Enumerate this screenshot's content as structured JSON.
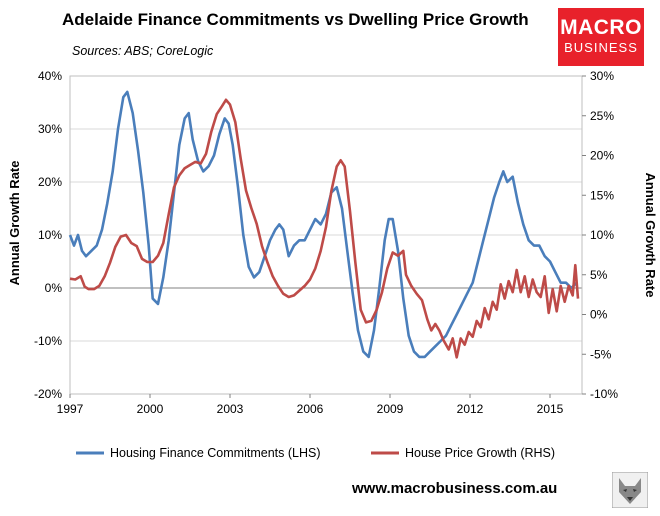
{
  "header": {
    "title": "Adelaide Finance Commitments vs Dwelling Price Growth",
    "source": "Sources: ABS; CoreLogic"
  },
  "logo": {
    "line1": "MACRO",
    "line2": "BUSINESS"
  },
  "footer": {
    "website": "www.macrobusiness.com.au"
  },
  "colors": {
    "finance": "#4a7ebb",
    "price": "#be4b48",
    "grid": "#d9d9d9",
    "logo_bg": "#e8212b"
  },
  "chart_data": {
    "type": "line",
    "title": "Adelaide Finance Commitments vs Dwelling Price Growth",
    "xlabel": "",
    "ylabel_left": "Annual Growth Rate",
    "ylabel_right": "Annual Growth Rate",
    "xlim": [
      1997,
      2016.2
    ],
    "ylim_left": [
      -20,
      40
    ],
    "ylim_right": [
      -10,
      30
    ],
    "x_ticks": [
      1997,
      2000,
      2003,
      2006,
      2009,
      2012,
      2015
    ],
    "y_ticks_left": [
      "-20%",
      "-10%",
      "0%",
      "10%",
      "20%",
      "30%",
      "40%"
    ],
    "y_ticks_right": [
      "-10%",
      "-5%",
      "0%",
      "5%",
      "10%",
      "15%",
      "20%",
      "25%",
      "30%"
    ],
    "grid": "horizontal",
    "legend_position": "bottom",
    "series": [
      {
        "name": "Housing Finance Commitments (LHS)",
        "axis": "left",
        "points": [
          [
            1997.0,
            10
          ],
          [
            1997.15,
            8
          ],
          [
            1997.3,
            10
          ],
          [
            1997.45,
            7
          ],
          [
            1997.6,
            6
          ],
          [
            1997.8,
            7
          ],
          [
            1998.0,
            8
          ],
          [
            1998.2,
            11
          ],
          [
            1998.4,
            16
          ],
          [
            1998.6,
            22
          ],
          [
            1998.8,
            30
          ],
          [
            1999.0,
            36
          ],
          [
            1999.15,
            37
          ],
          [
            1999.35,
            33
          ],
          [
            1999.55,
            26
          ],
          [
            1999.75,
            18
          ],
          [
            1999.95,
            8
          ],
          [
            2000.1,
            -2
          ],
          [
            2000.3,
            -3
          ],
          [
            2000.5,
            2
          ],
          [
            2000.7,
            9
          ],
          [
            2000.9,
            18
          ],
          [
            2001.1,
            27
          ],
          [
            2001.3,
            32
          ],
          [
            2001.45,
            33
          ],
          [
            2001.6,
            28
          ],
          [
            2001.8,
            24
          ],
          [
            2002.0,
            22
          ],
          [
            2002.2,
            23
          ],
          [
            2002.4,
            25
          ],
          [
            2002.6,
            29
          ],
          [
            2002.8,
            32
          ],
          [
            2002.95,
            31
          ],
          [
            2003.1,
            27
          ],
          [
            2003.3,
            19
          ],
          [
            2003.5,
            10
          ],
          [
            2003.7,
            4
          ],
          [
            2003.9,
            2
          ],
          [
            2004.1,
            3
          ],
          [
            2004.3,
            6
          ],
          [
            2004.5,
            9
          ],
          [
            2004.7,
            11
          ],
          [
            2004.85,
            12
          ],
          [
            2005.0,
            11
          ],
          [
            2005.2,
            6
          ],
          [
            2005.4,
            8
          ],
          [
            2005.6,
            9
          ],
          [
            2005.8,
            9
          ],
          [
            2006.0,
            11
          ],
          [
            2006.2,
            13
          ],
          [
            2006.4,
            12
          ],
          [
            2006.6,
            14
          ],
          [
            2006.8,
            18
          ],
          [
            2007.0,
            19
          ],
          [
            2007.2,
            15
          ],
          [
            2007.4,
            7
          ],
          [
            2007.6,
            -1
          ],
          [
            2007.8,
            -8
          ],
          [
            2008.0,
            -12
          ],
          [
            2008.2,
            -13
          ],
          [
            2008.4,
            -8
          ],
          [
            2008.6,
            0
          ],
          [
            2008.8,
            9
          ],
          [
            2008.95,
            13
          ],
          [
            2009.1,
            13
          ],
          [
            2009.3,
            7
          ],
          [
            2009.5,
            -2
          ],
          [
            2009.7,
            -9
          ],
          [
            2009.9,
            -12
          ],
          [
            2010.1,
            -13
          ],
          [
            2010.3,
            -13
          ],
          [
            2010.5,
            -12
          ],
          [
            2010.7,
            -11
          ],
          [
            2010.9,
            -10
          ],
          [
            2011.1,
            -9
          ],
          [
            2011.3,
            -7
          ],
          [
            2011.5,
            -5
          ],
          [
            2011.7,
            -3
          ],
          [
            2011.9,
            -1
          ],
          [
            2012.1,
            1
          ],
          [
            2012.3,
            5
          ],
          [
            2012.5,
            9
          ],
          [
            2012.7,
            13
          ],
          [
            2012.9,
            17
          ],
          [
            2013.1,
            20
          ],
          [
            2013.25,
            22
          ],
          [
            2013.4,
            20
          ],
          [
            2013.6,
            21
          ],
          [
            2013.8,
            16
          ],
          [
            2014.0,
            12
          ],
          [
            2014.2,
            9
          ],
          [
            2014.4,
            8
          ],
          [
            2014.6,
            8
          ],
          [
            2014.8,
            6
          ],
          [
            2015.0,
            5
          ],
          [
            2015.2,
            3
          ],
          [
            2015.4,
            1
          ],
          [
            2015.6,
            1
          ],
          [
            2015.8,
            0
          ],
          [
            2016.0,
            1
          ]
        ]
      },
      {
        "name": "House Price Growth (RHS)",
        "axis": "right",
        "points": [
          [
            1997.0,
            4.5
          ],
          [
            1997.2,
            4.4
          ],
          [
            1997.4,
            4.8
          ],
          [
            1997.55,
            3.5
          ],
          [
            1997.7,
            3.2
          ],
          [
            1997.9,
            3.2
          ],
          [
            1998.1,
            3.6
          ],
          [
            1998.3,
            4.8
          ],
          [
            1998.5,
            6.5
          ],
          [
            1998.7,
            8.5
          ],
          [
            1998.9,
            9.8
          ],
          [
            1999.1,
            10.0
          ],
          [
            1999.3,
            9.0
          ],
          [
            1999.5,
            8.6
          ],
          [
            1999.7,
            7.0
          ],
          [
            1999.9,
            6.6
          ],
          [
            2000.1,
            6.6
          ],
          [
            2000.3,
            7.4
          ],
          [
            2000.5,
            9.0
          ],
          [
            2000.7,
            12.6
          ],
          [
            2000.9,
            16.0
          ],
          [
            2001.1,
            17.5
          ],
          [
            2001.3,
            18.4
          ],
          [
            2001.5,
            18.8
          ],
          [
            2001.7,
            19.2
          ],
          [
            2001.9,
            19.0
          ],
          [
            2002.1,
            20.2
          ],
          [
            2002.3,
            23.0
          ],
          [
            2002.5,
            25.2
          ],
          [
            2002.7,
            26.2
          ],
          [
            2002.85,
            27.0
          ],
          [
            2003.0,
            26.4
          ],
          [
            2003.2,
            24.2
          ],
          [
            2003.4,
            19.6
          ],
          [
            2003.6,
            15.6
          ],
          [
            2003.8,
            13.4
          ],
          [
            2004.0,
            11.4
          ],
          [
            2004.2,
            8.6
          ],
          [
            2004.4,
            6.6
          ],
          [
            2004.6,
            4.8
          ],
          [
            2004.8,
            3.6
          ],
          [
            2005.0,
            2.6
          ],
          [
            2005.2,
            2.2
          ],
          [
            2005.4,
            2.4
          ],
          [
            2005.6,
            3.0
          ],
          [
            2005.8,
            3.6
          ],
          [
            2006.0,
            4.4
          ],
          [
            2006.2,
            5.8
          ],
          [
            2006.4,
            8.0
          ],
          [
            2006.6,
            11.0
          ],
          [
            2006.8,
            15.5
          ],
          [
            2007.0,
            18.6
          ],
          [
            2007.15,
            19.4
          ],
          [
            2007.3,
            18.6
          ],
          [
            2007.5,
            13.0
          ],
          [
            2007.7,
            6.6
          ],
          [
            2007.9,
            0.6
          ],
          [
            2008.1,
            -1.0
          ],
          [
            2008.3,
            -0.8
          ],
          [
            2008.5,
            0.6
          ],
          [
            2008.7,
            2.8
          ],
          [
            2008.9,
            5.8
          ],
          [
            2009.1,
            7.8
          ],
          [
            2009.3,
            7.4
          ],
          [
            2009.5,
            8.0
          ],
          [
            2009.6,
            5.0
          ],
          [
            2009.8,
            3.6
          ],
          [
            2010.0,
            2.6
          ],
          [
            2010.2,
            1.8
          ],
          [
            2010.4,
            -0.6
          ],
          [
            2010.55,
            -2.0
          ],
          [
            2010.7,
            -1.2
          ],
          [
            2010.85,
            -2.0
          ],
          [
            2011.0,
            -3.2
          ],
          [
            2011.2,
            -4.4
          ],
          [
            2011.35,
            -3.0
          ],
          [
            2011.5,
            -5.4
          ],
          [
            2011.65,
            -3.0
          ],
          [
            2011.8,
            -3.8
          ],
          [
            2011.95,
            -2.2
          ],
          [
            2012.1,
            -2.8
          ],
          [
            2012.25,
            -0.8
          ],
          [
            2012.4,
            -1.6
          ],
          [
            2012.55,
            0.8
          ],
          [
            2012.7,
            -0.6
          ],
          [
            2012.85,
            1.6
          ],
          [
            2013.0,
            0.6
          ],
          [
            2013.15,
            3.8
          ],
          [
            2013.3,
            2.0
          ],
          [
            2013.45,
            4.2
          ],
          [
            2013.6,
            2.8
          ],
          [
            2013.75,
            5.6
          ],
          [
            2013.9,
            2.8
          ],
          [
            2014.05,
            4.8
          ],
          [
            2014.2,
            2.2
          ],
          [
            2014.35,
            4.4
          ],
          [
            2014.5,
            2.8
          ],
          [
            2014.65,
            2.2
          ],
          [
            2014.8,
            4.8
          ],
          [
            2014.95,
            0.2
          ],
          [
            2015.1,
            3.2
          ],
          [
            2015.25,
            0.4
          ],
          [
            2015.4,
            3.6
          ],
          [
            2015.55,
            1.6
          ],
          [
            2015.7,
            3.6
          ],
          [
            2015.85,
            2.4
          ],
          [
            2015.95,
            6.2
          ],
          [
            2016.05,
            2.0
          ]
        ]
      }
    ]
  }
}
